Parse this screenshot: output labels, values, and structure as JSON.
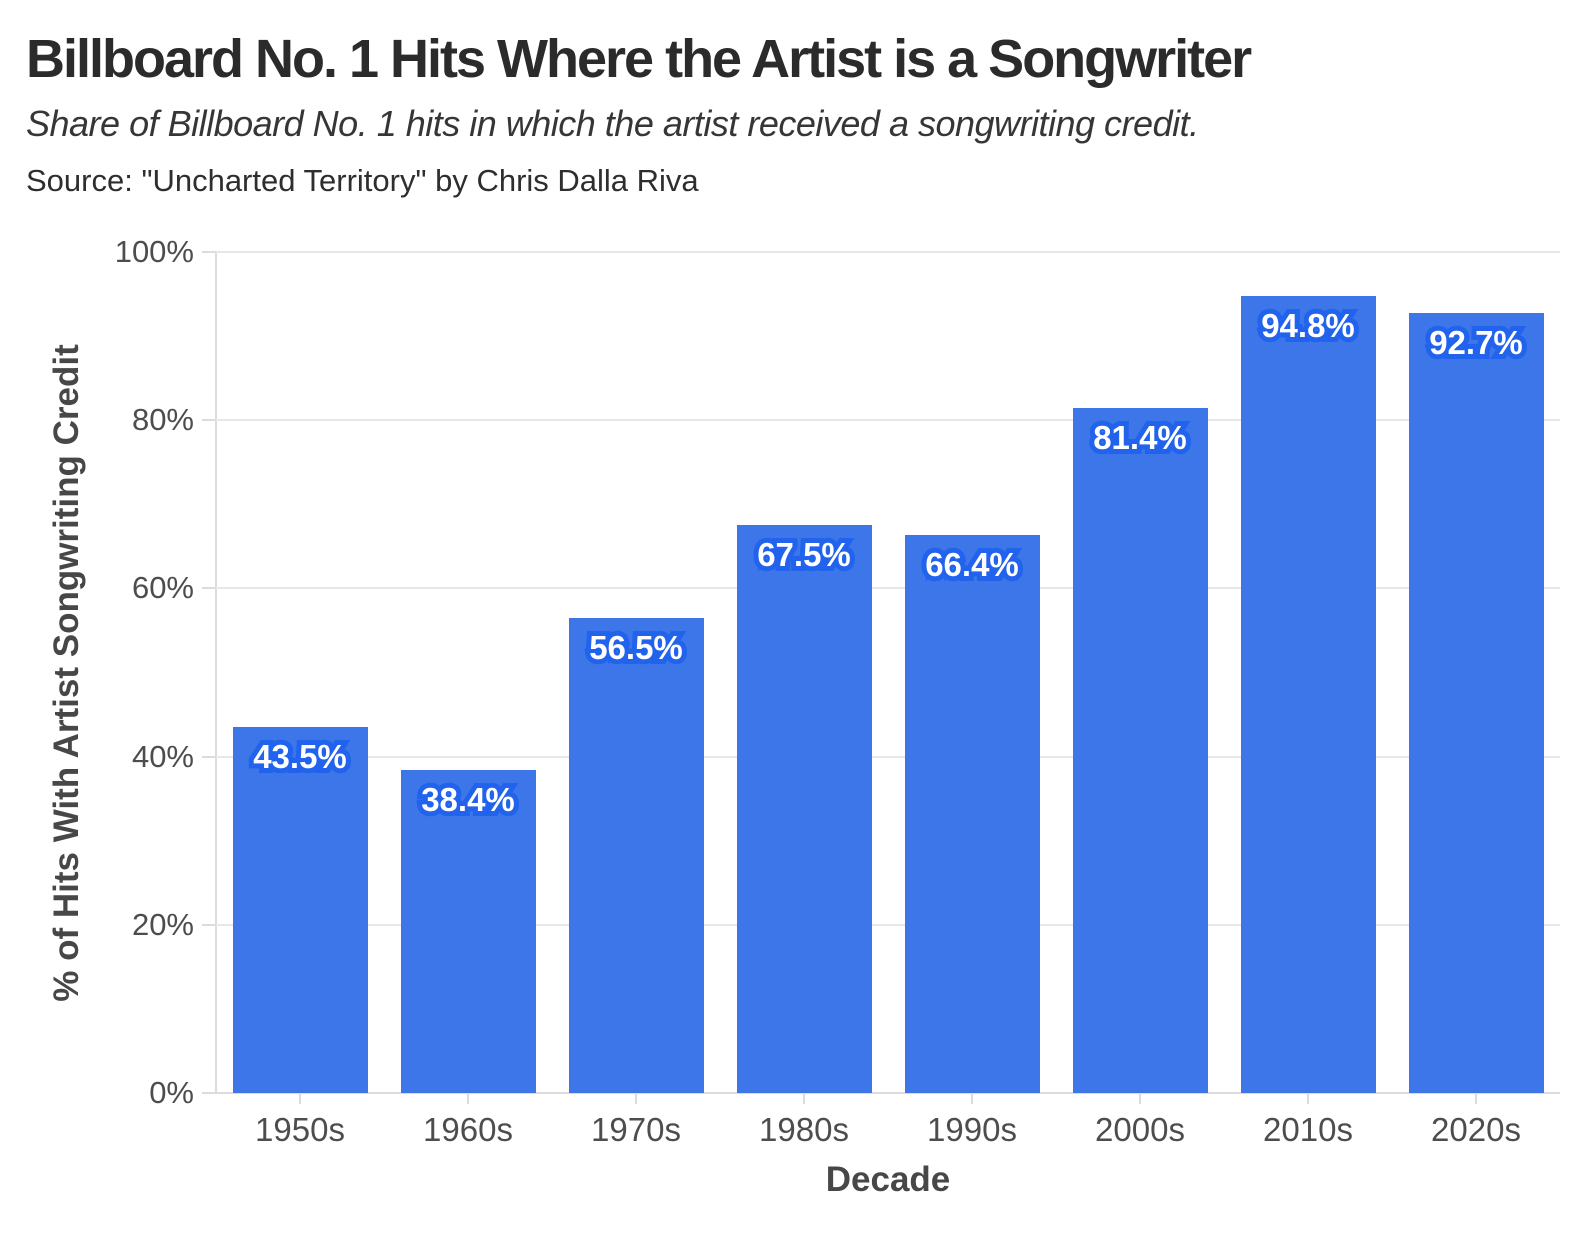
{
  "chart_data": {
    "type": "bar",
    "title": "Billboard No. 1 Hits Where the Artist is a Songwriter",
    "subtitle": "Share of Billboard No. 1 hits in which the artist received a songwriting credit.",
    "source_note": "Source: \"Uncharted Territory\" by Chris Dalla Riva",
    "xlabel": "Decade",
    "ylabel": "% of Hits With Artist Songwriting Credit",
    "categories": [
      "1950s",
      "1960s",
      "1970s",
      "1980s",
      "1990s",
      "2000s",
      "2010s",
      "2020s"
    ],
    "values": [
      43.5,
      38.4,
      56.5,
      67.5,
      66.4,
      81.4,
      94.8,
      92.7
    ],
    "value_labels": [
      "43.5%",
      "38.4%",
      "56.5%",
      "67.5%",
      "66.4%",
      "81.4%",
      "94.8%",
      "92.7%"
    ],
    "ylim": [
      0,
      100
    ],
    "yticks": [
      0,
      20,
      40,
      60,
      80,
      100
    ],
    "ytick_labels": [
      "0%",
      "20%",
      "40%",
      "60%",
      "80%",
      "100%"
    ],
    "grid": "horizontal",
    "legend": "none",
    "colors": {
      "bar": "#3d76e8",
      "bar_label_fill": "#ffffff",
      "bar_label_outline": "#2263ee",
      "grid": "#e7e7e7",
      "axis_line": "#dcdcdc",
      "axis_text": "#4d4d4d",
      "title_text": "#2b2b2b"
    }
  }
}
